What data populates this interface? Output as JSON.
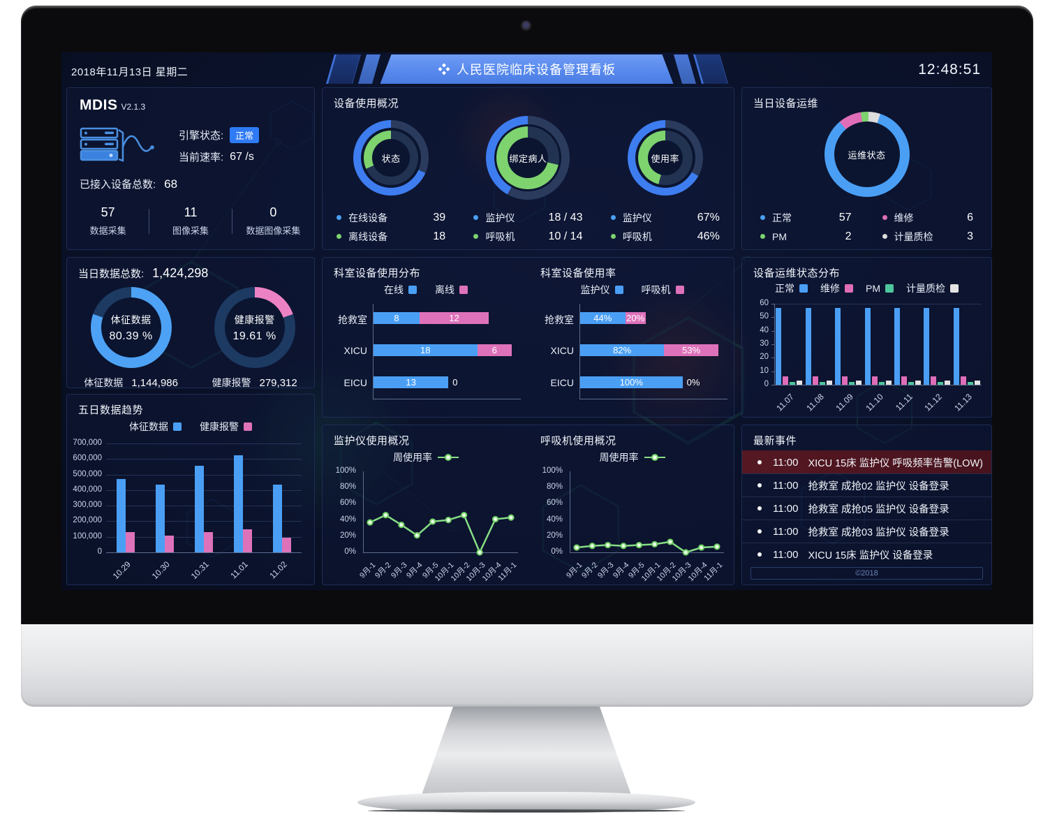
{
  "header": {
    "date": "2018年11月13日 星期二",
    "title": "人民医院临床设备管理看板",
    "time": "12:48:51"
  },
  "mdis": {
    "name": "MDIS",
    "version": "V2.1.3",
    "engine_label": "引擎状态:",
    "engine_status": "正常",
    "rate_label": "当前速率:",
    "rate_value": "67 /s",
    "total_label": "已接入设备总数:",
    "total_value": "68",
    "stats": [
      {
        "value": "57",
        "label": "数据采集"
      },
      {
        "value": "11",
        "label": "图像采集"
      },
      {
        "value": "0",
        "label": "数据图像采集"
      }
    ]
  },
  "panels": {
    "usage_title": "设备使用概况",
    "ops_today_title": "当日设备运维",
    "data_total_label": "当日数据总数:",
    "data_total_value": "1,424,298",
    "events_title": "最新事件",
    "events_footer": "©2018"
  },
  "ops_legend": [
    {
      "label": "正常",
      "value": "57",
      "color": "#4a9ff5"
    },
    {
      "label": "维修",
      "value": "6",
      "color": "#e06db8"
    },
    {
      "label": "PM",
      "value": "2",
      "color": "#7ed36f"
    },
    {
      "label": "计量质检",
      "value": "3",
      "color": "#dcdcdc"
    }
  ],
  "chart_data": {
    "usage_status": {
      "type": "donut",
      "center": "状态",
      "size": 108,
      "t1": 11,
      "gap": 4,
      "t2": 12,
      "rings": [
        {
          "label": "在线设备",
          "color": "#3e7df0",
          "pct": 68.4
        },
        {
          "label": "离线设备",
          "color": "#7ed36f",
          "pct": 31.6
        }
      ],
      "legend": [
        {
          "color": "#4a9ff5",
          "label": "在线设备",
          "value": "39"
        },
        {
          "color": "#7ed36f",
          "label": "离线设备",
          "value": "18"
        }
      ]
    },
    "usage_bind": {
      "type": "donut",
      "center": "绑定病人",
      "size": 120,
      "t1": 12,
      "gap": 3,
      "t2": 16,
      "rings": [
        {
          "label": "监护仪",
          "color": "#3e7df0",
          "pct": 41.9
        },
        {
          "label": "呼吸机",
          "color": "#7ed36f",
          "pct": 71.4
        }
      ],
      "legend": [
        {
          "color": "#4a9ff5",
          "label": "监护仪",
          "value": "18 / 43"
        },
        {
          "color": "#7ed36f",
          "label": "呼吸机",
          "value": "10 / 14"
        }
      ]
    },
    "usage_rate": {
      "type": "donut",
      "center": "使用率",
      "size": 108,
      "t1": 11,
      "gap": 4,
      "t2": 14,
      "rings": [
        {
          "label": "监护仪",
          "color": "#3e7df0",
          "pct": 67
        },
        {
          "label": "呼吸机",
          "color": "#7ed36f",
          "pct": 46
        }
      ],
      "legend": [
        {
          "color": "#4a9ff5",
          "label": "监护仪",
          "value": "67%"
        },
        {
          "color": "#7ed36f",
          "label": "呼吸机",
          "value": "46%"
        }
      ]
    },
    "ops_donut": {
      "type": "pie",
      "center": "运维状态",
      "size": 122,
      "t1": 14,
      "start_deg": 18,
      "segments": [
        {
          "label": "正常",
          "value": 57,
          "color": "#4a9ff5"
        },
        {
          "label": "维修",
          "value": 6,
          "color": "#e06db8"
        },
        {
          "label": "PM",
          "value": 2,
          "color": "#7ed36f"
        },
        {
          "label": "计量质检",
          "value": 3,
          "color": "#dcdcdc"
        }
      ]
    },
    "vital_donut": {
      "type": "donut",
      "center_lines": [
        "体征数据",
        "80.39 %"
      ],
      "size": 116,
      "t1": 15,
      "pct": 80.39,
      "color": "#4da2f5",
      "rest": "#1d3a63",
      "footer_label": "体征数据",
      "footer_value": "1,144,986"
    },
    "alarm_donut": {
      "type": "donut",
      "center_lines": [
        "健康报警",
        "19.61 %"
      ],
      "size": 116,
      "t1": 15,
      "pct": 19.61,
      "color": "#ec82c4",
      "rest": "#1d3a63",
      "footer_label": "健康报警",
      "footer_value": "279,312"
    },
    "trend5": {
      "type": "bar",
      "title": "五日数据趋势",
      "categories": [
        "10.29",
        "10.30",
        "10.31",
        "11.01",
        "11.02"
      ],
      "series": [
        {
          "name": "体征数据",
          "color": "#4a9ff5",
          "values": [
            470000,
            437000,
            555000,
            622000,
            437000
          ]
        },
        {
          "name": "健康报警",
          "color": "#de72ba",
          "values": [
            130000,
            107000,
            130000,
            148000,
            95000
          ]
        }
      ],
      "ylim": [
        0,
        700000
      ],
      "y_ticks": [
        "700,000",
        "600,000",
        "500,000",
        "400,000",
        "300,000",
        "200,000",
        "100,000",
        "0"
      ]
    },
    "dept_dist": {
      "type": "stacked-hbar",
      "title": "科室设备使用分布",
      "max": 24,
      "legend": [
        {
          "label": "在线",
          "color": "#4a9ff5"
        },
        {
          "label": "离线",
          "color": "#de72ba"
        }
      ],
      "rows": [
        {
          "label": "抢救室",
          "a": 8,
          "b": 12,
          "a_text": "8",
          "b_text": "12"
        },
        {
          "label": "XICU",
          "a": 18,
          "b": 6,
          "a_text": "18",
          "b_text": "6"
        },
        {
          "label": "EICU",
          "a": 13,
          "b": 0,
          "a_text": "13",
          "b_text": "0"
        }
      ]
    },
    "dept_rate": {
      "type": "stacked-hbar",
      "title": "科室设备使用率",
      "max": 135,
      "legend": [
        {
          "label": "监护仪",
          "color": "#4a9ff5"
        },
        {
          "label": "呼吸机",
          "color": "#de72ba"
        }
      ],
      "rows": [
        {
          "label": "抢救室",
          "a": 44,
          "b": 20,
          "a_text": "44%",
          "b_text": "20%"
        },
        {
          "label": "XICU",
          "a": 82,
          "b": 53,
          "a_text": "82%",
          "b_text": "53%"
        },
        {
          "label": "EICU",
          "a": 100,
          "b": 0,
          "a_text": "100%",
          "b_text": "0%"
        }
      ]
    },
    "ops_dist": {
      "type": "grouped-bar",
      "title": "设备运维状态分布",
      "legend": [
        {
          "label": "正常",
          "color": "#4a9ff5"
        },
        {
          "label": "维修",
          "color": "#e06db8"
        },
        {
          "label": "PM",
          "color": "#4ec79c"
        },
        {
          "label": "计量质检",
          "color": "#e3e3e3"
        }
      ],
      "categories": [
        "11.07",
        "11.08",
        "11.09",
        "11.10",
        "11.11",
        "11.12",
        "11.13"
      ],
      "series": [
        {
          "name": "正常",
          "color": "#4a9ff5",
          "values": [
            57,
            57,
            57,
            57,
            57,
            57,
            57
          ]
        },
        {
          "name": "维修",
          "color": "#e06db8",
          "values": [
            6,
            6,
            6,
            6,
            6,
            6,
            6
          ]
        },
        {
          "name": "PM",
          "color": "#4ec79c",
          "values": [
            2,
            2,
            2,
            2,
            2,
            2,
            2
          ]
        },
        {
          "name": "计量质检",
          "color": "#e3e3e3",
          "values": [
            3,
            3,
            3,
            3,
            3,
            3,
            3
          ]
        }
      ],
      "ylim": [
        0,
        60
      ],
      "y_ticks": [
        "60",
        "50",
        "40",
        "30",
        "20",
        "10",
        "0"
      ]
    },
    "monitor_line": {
      "type": "line",
      "title": "监护仪使用概况",
      "legend": "周使用率",
      "color": "#86dd84",
      "x": [
        "9月-1",
        "9月-2",
        "9月-3",
        "9月-4",
        "9月-5",
        "10月-1",
        "10月-2",
        "10月-3",
        "10月-4",
        "11月-1"
      ],
      "values": [
        37,
        46,
        34,
        21,
        38,
        40,
        46,
        0,
        41,
        43
      ],
      "ylim": [
        0,
        100
      ],
      "y_ticks": [
        "100%",
        "80%",
        "60%",
        "40%",
        "20%",
        "0%"
      ]
    },
    "vent_line": {
      "type": "line",
      "title": "呼吸机使用概况",
      "legend": "周使用率",
      "color": "#86dd84",
      "x": [
        "9月-1",
        "9月-2",
        "9月-3",
        "9月-4",
        "9月-5",
        "10月-1",
        "10月-2",
        "10月-3",
        "10月-4",
        "11月-1"
      ],
      "values": [
        6,
        8,
        9,
        8,
        9,
        10,
        13,
        0,
        6,
        7
      ],
      "ylim": [
        0,
        100
      ],
      "y_ticks": [
        "100%",
        "80%",
        "60%",
        "40%",
        "20%",
        "0%"
      ]
    }
  },
  "events": {
    "items": [
      {
        "time": "11:00",
        "text": "XICU 15床 监护仪 呼吸频率告警(LOW)",
        "alert": true
      },
      {
        "time": "11:00",
        "text": "抢救室 成抢02 监护仪 设备登录",
        "alert": false
      },
      {
        "time": "11:00",
        "text": "抢救室 成抢05 监护仪 设备登录",
        "alert": false
      },
      {
        "time": "11:00",
        "text": "抢救室 成抢03 监护仪 设备登录",
        "alert": false
      },
      {
        "time": "11:00",
        "text": "XICU 15床 监护仪 设备登录",
        "alert": false
      }
    ]
  }
}
